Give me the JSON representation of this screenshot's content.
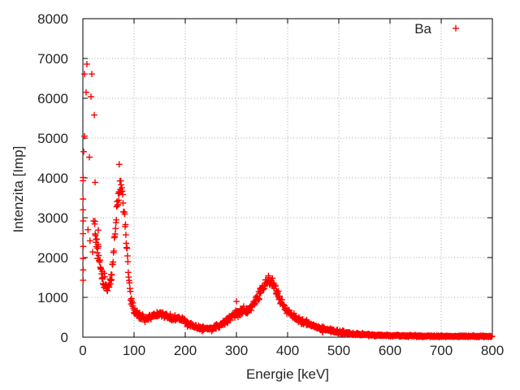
{
  "chart_data": {
    "type": "scatter",
    "title": "",
    "xlabel": "Energie [keV]",
    "ylabel": "Intenzita [Imp]",
    "xlim": [
      0,
      800
    ],
    "ylim": [
      0,
      8000
    ],
    "xticks": [
      0,
      100,
      200,
      300,
      400,
      500,
      600,
      700,
      800
    ],
    "yticks": [
      0,
      1000,
      2000,
      3000,
      4000,
      5000,
      6000,
      7000,
      8000
    ],
    "grid": true,
    "legend": {
      "position": "top-right-inside",
      "entries": [
        {
          "label": "Ba",
          "marker": "plus",
          "color": "#ff0000"
        }
      ]
    },
    "colors": {
      "background": "#ffffff",
      "axis": "#000000",
      "grid": "#a8a8a8",
      "text": "#262626",
      "points": "#ff0000"
    },
    "series": [
      {
        "name": "Ba",
        "marker": "plus",
        "color": "#ff0000",
        "sample_step_kev": 0.78,
        "dense_start_kev": 23.2,
        "noise_seed": 1337,
        "noise_scale": 1.7,
        "low_energy_extra_scatter_below_kev": 46,
        "low_energy_scatter_multiplier": 2.0,
        "backbone": [
          [
            24,
            2800
          ],
          [
            28,
            2250
          ],
          [
            32,
            1950
          ],
          [
            36,
            1650
          ],
          [
            40,
            1430
          ],
          [
            44,
            1280
          ],
          [
            48,
            1240
          ],
          [
            52,
            1330
          ],
          [
            56,
            1560
          ],
          [
            60,
            2100
          ],
          [
            63,
            2650
          ],
          [
            66,
            3150
          ],
          [
            69,
            3520
          ],
          [
            72,
            3750
          ],
          [
            74,
            3800
          ],
          [
            76,
            3700
          ],
          [
            79,
            3350
          ],
          [
            82,
            2900
          ],
          [
            85,
            2400
          ],
          [
            88,
            1850
          ],
          [
            90,
            1450
          ],
          [
            92,
            1150
          ],
          [
            94,
            950
          ],
          [
            97,
            800
          ],
          [
            101,
            680
          ],
          [
            105,
            600
          ],
          [
            110,
            555
          ],
          [
            115,
            500
          ],
          [
            120,
            470
          ],
          [
            126,
            495
          ],
          [
            134,
            535
          ],
          [
            142,
            545
          ],
          [
            150,
            585
          ],
          [
            158,
            560
          ],
          [
            166,
            520
          ],
          [
            175,
            480
          ],
          [
            185,
            450
          ],
          [
            195,
            425
          ],
          [
            205,
            345
          ],
          [
            215,
            280
          ],
          [
            225,
            235
          ],
          [
            235,
            215
          ],
          [
            245,
            210
          ],
          [
            255,
            225
          ],
          [
            263,
            260
          ],
          [
            270,
            310
          ],
          [
            278,
            390
          ],
          [
            285,
            460
          ],
          [
            292,
            530
          ],
          [
            299,
            590
          ],
          [
            305,
            630
          ],
          [
            312,
            655
          ],
          [
            318,
            645
          ],
          [
            324,
            690
          ],
          [
            330,
            790
          ],
          [
            336,
            905
          ],
          [
            342,
            1040
          ],
          [
            348,
            1180
          ],
          [
            353,
            1300
          ],
          [
            358,
            1400
          ],
          [
            362,
            1450
          ],
          [
            366,
            1435
          ],
          [
            370,
            1360
          ],
          [
            375,
            1230
          ],
          [
            380,
            1080
          ],
          [
            386,
            920
          ],
          [
            392,
            780
          ],
          [
            398,
            665
          ],
          [
            405,
            590
          ],
          [
            414,
            510
          ],
          [
            421,
            450
          ],
          [
            429,
            395
          ],
          [
            437,
            350
          ],
          [
            445,
            310
          ],
          [
            453,
            275
          ],
          [
            462,
            240
          ],
          [
            471,
            205
          ],
          [
            480,
            175
          ],
          [
            490,
            148
          ],
          [
            500,
            125
          ],
          [
            512,
            103
          ],
          [
            525,
            85
          ],
          [
            540,
            70
          ],
          [
            560,
            57
          ],
          [
            580,
            48
          ],
          [
            600,
            40
          ],
          [
            630,
            33
          ],
          [
            660,
            28
          ],
          [
            700,
            25
          ],
          [
            740,
            22
          ],
          [
            770,
            21
          ],
          [
            800,
            20
          ]
        ],
        "outliers": [
          [
            0.3,
            3930
          ],
          [
            0.3,
            3470
          ],
          [
            0.5,
            3200
          ],
          [
            0.6,
            2920
          ],
          [
            0.3,
            2600
          ],
          [
            0.6,
            2280
          ],
          [
            0.3,
            1980
          ],
          [
            0.6,
            1690
          ],
          [
            0.4,
            1430
          ],
          [
            0.5,
            4010
          ],
          [
            1.6,
            4660
          ],
          [
            3.2,
            6610
          ],
          [
            3.2,
            5050
          ],
          [
            6.3,
            6150
          ],
          [
            7.9,
            6860
          ],
          [
            12.7,
            4520
          ],
          [
            15.9,
            6040
          ],
          [
            17.5,
            6610
          ],
          [
            22.2,
            5580
          ],
          [
            10,
            2700
          ],
          [
            14,
            2420
          ],
          [
            19,
            2140
          ],
          [
            21,
            2920
          ],
          [
            26,
            2450
          ],
          [
            28.6,
            1980
          ],
          [
            30,
            2690
          ],
          [
            23.8,
            3890
          ],
          [
            23.8,
            2910
          ],
          [
            71,
            4340
          ],
          [
            300,
            900
          ]
        ]
      }
    ]
  }
}
